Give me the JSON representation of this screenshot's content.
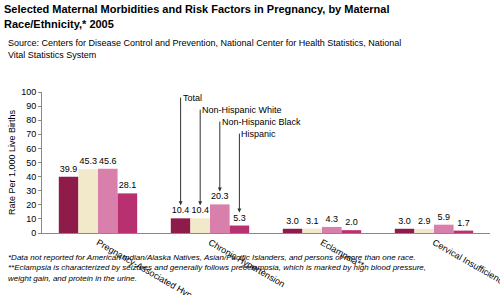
{
  "chart_data": {
    "type": "bar",
    "title": "Selected Maternal Morbidities and Risk Factors in Pregnancy, by Maternal Race/Ethnicity,* 2005",
    "subtitle": "Source: Centers for Disease Control and Prevention, National Center for Health Statistics, National Vital Statistics System",
    "y_label": "Rate Per 1,000 Live Births",
    "categories": [
      "Pregnancy-Associated Hypertension",
      "Chronic Hypertension",
      "Eclampsia**",
      "Cervical Insufficiency"
    ],
    "series": [
      {
        "name": "Total",
        "color": "#8e1b4a",
        "values": [
          39.9,
          10.4,
          3.0,
          3.0
        ],
        "value_labels": [
          "39.9",
          "10.4",
          "3.0",
          "3.0"
        ]
      },
      {
        "name": "Non-Hispanic White",
        "color": "#f1e9c9",
        "values": [
          45.3,
          10.4,
          3.1,
          2.9
        ],
        "value_labels": [
          "45.3",
          "10.4",
          "3.1",
          "2.9"
        ]
      },
      {
        "name": "Non-Hispanic Black",
        "color": "#d880ab",
        "values": [
          45.6,
          20.3,
          4.3,
          5.9
        ],
        "value_labels": [
          "45.6",
          "20.3",
          "4.3",
          "5.9"
        ]
      },
      {
        "name": "Hispanic",
        "color": "#b8306f",
        "values": [
          28.1,
          5.3,
          2.0,
          1.7
        ],
        "value_labels": [
          "28.1",
          "5.3",
          "2.0",
          "1.7"
        ]
      }
    ],
    "ylim": [
      0,
      100
    ],
    "yticks": [
      0,
      10,
      20,
      30,
      40,
      50,
      60,
      70,
      80,
      90,
      100
    ],
    "grid": false,
    "data_labels": true,
    "annotations": [
      "*Data not reported for American Indian/Alaska Natives, Asian/Pacific Islanders, and persons of more than one race. **Eclampsia is characterized by seizures and generally follows preeclampsia, which is marked by high blood pressure, weight gain, and protein in the urine."
    ]
  }
}
